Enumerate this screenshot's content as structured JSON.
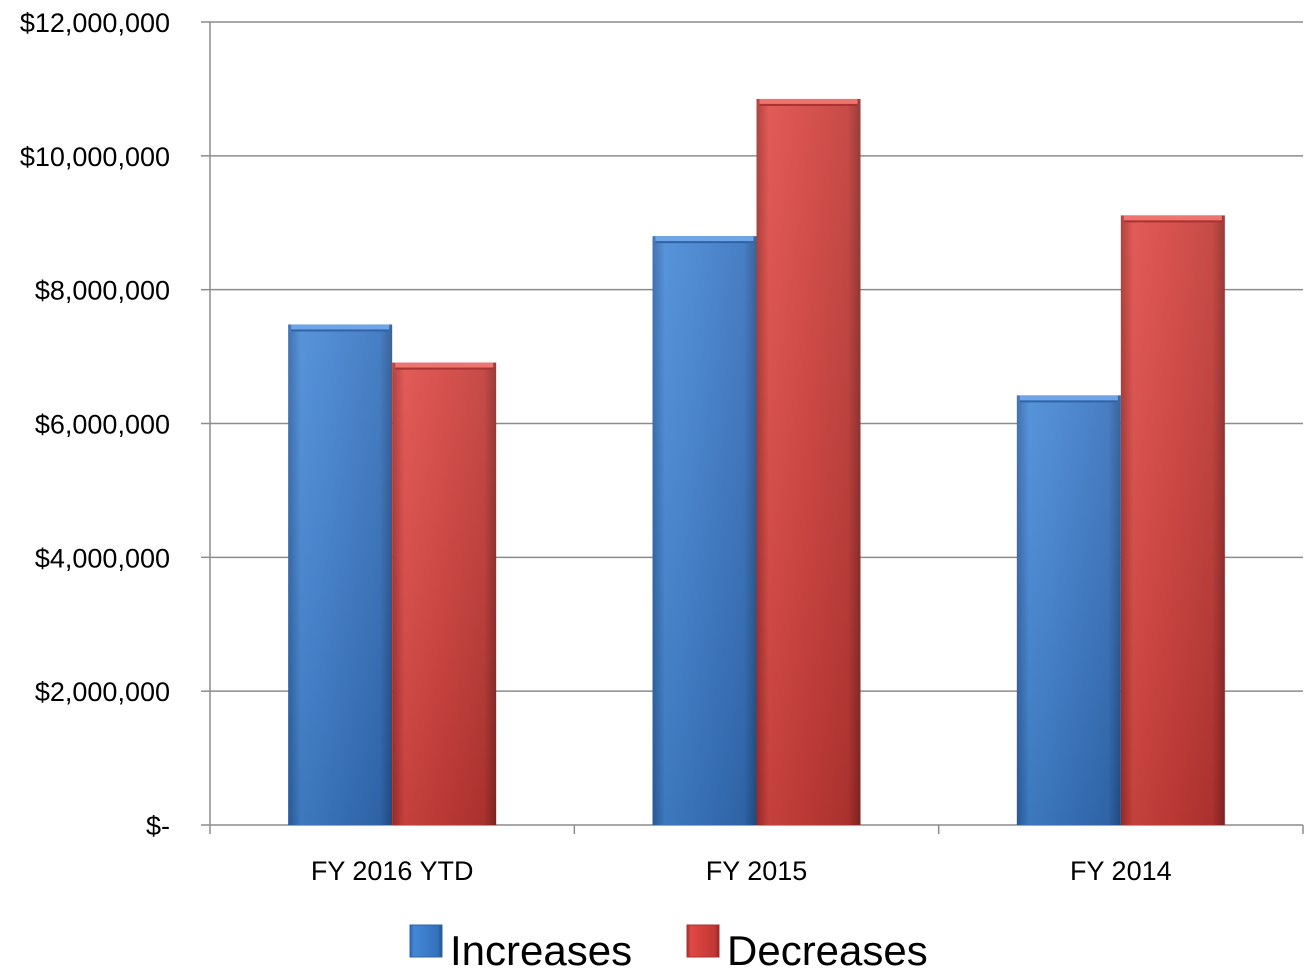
{
  "chart_data": {
    "type": "bar",
    "title": "",
    "xlabel": "",
    "ylabel": "",
    "categories": [
      "FY 2016 YTD",
      "FY 2015",
      "FY 2014"
    ],
    "series": [
      {
        "name": "Increases",
        "values": [
          7480000,
          8800000,
          6420000
        ],
        "color": "#3F7FCF"
      },
      {
        "name": "Decreases",
        "values": [
          6910000,
          10850000,
          9110000
        ],
        "color": "#D23F3B"
      }
    ],
    "ylim": [
      0,
      12000000
    ],
    "yticks": [
      0,
      2000000,
      4000000,
      6000000,
      8000000,
      10000000,
      12000000
    ],
    "ytick_labels": [
      "$-",
      "$2,000,000",
      "$4,000,000",
      "$6,000,000",
      "$8,000,000",
      "$10,000,000",
      "$12,000,000"
    ],
    "grid": true,
    "legend": "bottom"
  }
}
